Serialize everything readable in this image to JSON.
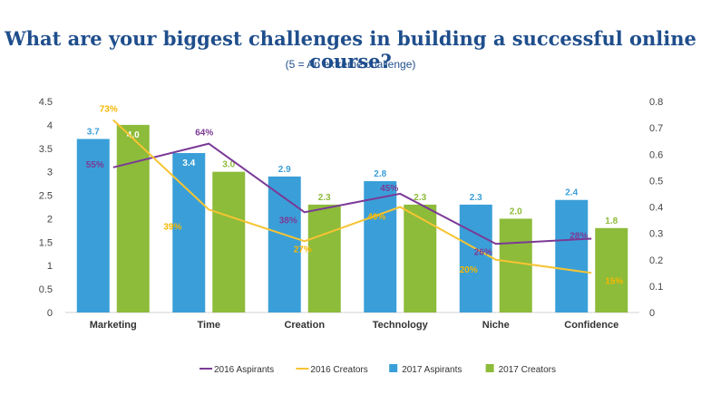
{
  "title": "What are your biggest challenges in building a successful online course?",
  "subtitle": "(5 = An extreme challenge)",
  "chart_data": {
    "type": "bar",
    "categories": [
      "Marketing",
      "Time",
      "Creation",
      "Technology",
      "Niche",
      "Confidence"
    ],
    "left_axis": {
      "ylim": [
        0,
        4.5
      ],
      "ticks": [
        "0",
        "0.5",
        "1",
        "1.5",
        "2",
        "2.5",
        "3",
        "3.5",
        "4",
        "4.5"
      ]
    },
    "right_axis": {
      "ylim": [
        0,
        0.8
      ],
      "ticks": [
        "0",
        "0.1",
        "0.2",
        "0.3",
        "0.4",
        "0.5",
        "0.6",
        "0.7",
        "0.8"
      ]
    },
    "bar_series": [
      {
        "name": "2017 Aspirants",
        "color": "#3a9fd8",
        "values": [
          3.7,
          3.4,
          2.9,
          2.8,
          2.3,
          2.4
        ],
        "labels": [
          "3.7",
          "3.4",
          "2.9",
          "2.8",
          "2.3",
          "2.4"
        ]
      },
      {
        "name": "2017 Creators",
        "color": "#8dbb3a",
        "values": [
          4.0,
          3.0,
          2.3,
          2.3,
          2.0,
          1.8
        ],
        "labels": [
          "4.0",
          "3.0",
          "2.3",
          "2.3",
          "2.0",
          "1.8"
        ]
      }
    ],
    "line_series": [
      {
        "name": "2016 Aspirants",
        "color": "#7b3a96",
        "values": [
          0.55,
          0.64,
          0.38,
          0.45,
          0.26,
          0.28
        ],
        "labels": [
          "55%",
          "64%",
          "38%",
          "45%",
          "26%",
          "28%"
        ]
      },
      {
        "name": "2016 Creators",
        "color": "#f6c433",
        "values": [
          0.73,
          0.39,
          0.27,
          0.4,
          0.2,
          0.15
        ],
        "labels": [
          "73%",
          "39%",
          "27%",
          "40%",
          "20%",
          "15%"
        ]
      }
    ],
    "legend": {
      "position": "bottom",
      "items": [
        "2016 Aspirants",
        "2016 Creators",
        "2017 Aspirants",
        "2017 Creators"
      ]
    }
  }
}
